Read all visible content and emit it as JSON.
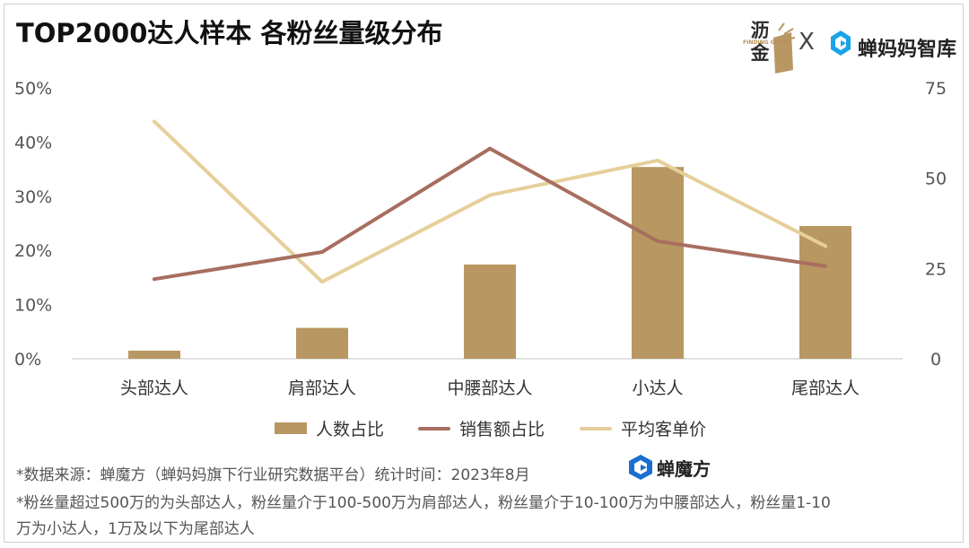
{
  "title": "TOP2000达人样本 各粉丝量级分布",
  "logos": {
    "logo1_text": "沥金",
    "logo1_sub": "FINDING GOLD",
    "separator": "X",
    "logo2_text": "蝉妈妈智库",
    "logo2_icon": "chanmama-icon"
  },
  "colors": {
    "bar": "#b89762",
    "sales_line": "#a86e5f",
    "price_line": "#e6cf9a"
  },
  "chart_data": {
    "type": "bar",
    "categories": [
      "头部达人",
      "肩部达人",
      "中腰部达人",
      "小达人",
      "尾部达人"
    ],
    "y_left_ticks": [
      "0%",
      "10%",
      "20%",
      "30%",
      "40%",
      "50%"
    ],
    "y_left_lim": [
      0,
      50
    ],
    "y_right_ticks": [
      "0",
      "25",
      "50",
      "75"
    ],
    "y_right_lim": [
      0,
      75
    ],
    "series": [
      {
        "name": "人数占比",
        "type": "bar",
        "axis": "left",
        "values": [
          1.5,
          5.7,
          17.4,
          35.4,
          24.5
        ]
      },
      {
        "name": "销售额占比",
        "type": "line",
        "axis": "left",
        "values": [
          14.7,
          19.7,
          38.8,
          21.7,
          17.1
        ]
      },
      {
        "name": "平均客单价",
        "type": "line",
        "axis": "right",
        "values": [
          65.7,
          21.3,
          45.3,
          54.9,
          31.2
        ]
      }
    ]
  },
  "footnotes": {
    "source": "*数据来源：蝉魔方（蝉妈妈旗下行业研究数据平台）统计时间：2023年8月",
    "source_brand": "蝉魔方",
    "definition_line1": "*粉丝量超过500万的为头部达人，粉丝量介于100-500万为肩部达人，粉丝量介于10-100万为中腰部达人，粉丝量1-10",
    "definition_line2": "万为小达人，1万及以下为尾部达人"
  }
}
